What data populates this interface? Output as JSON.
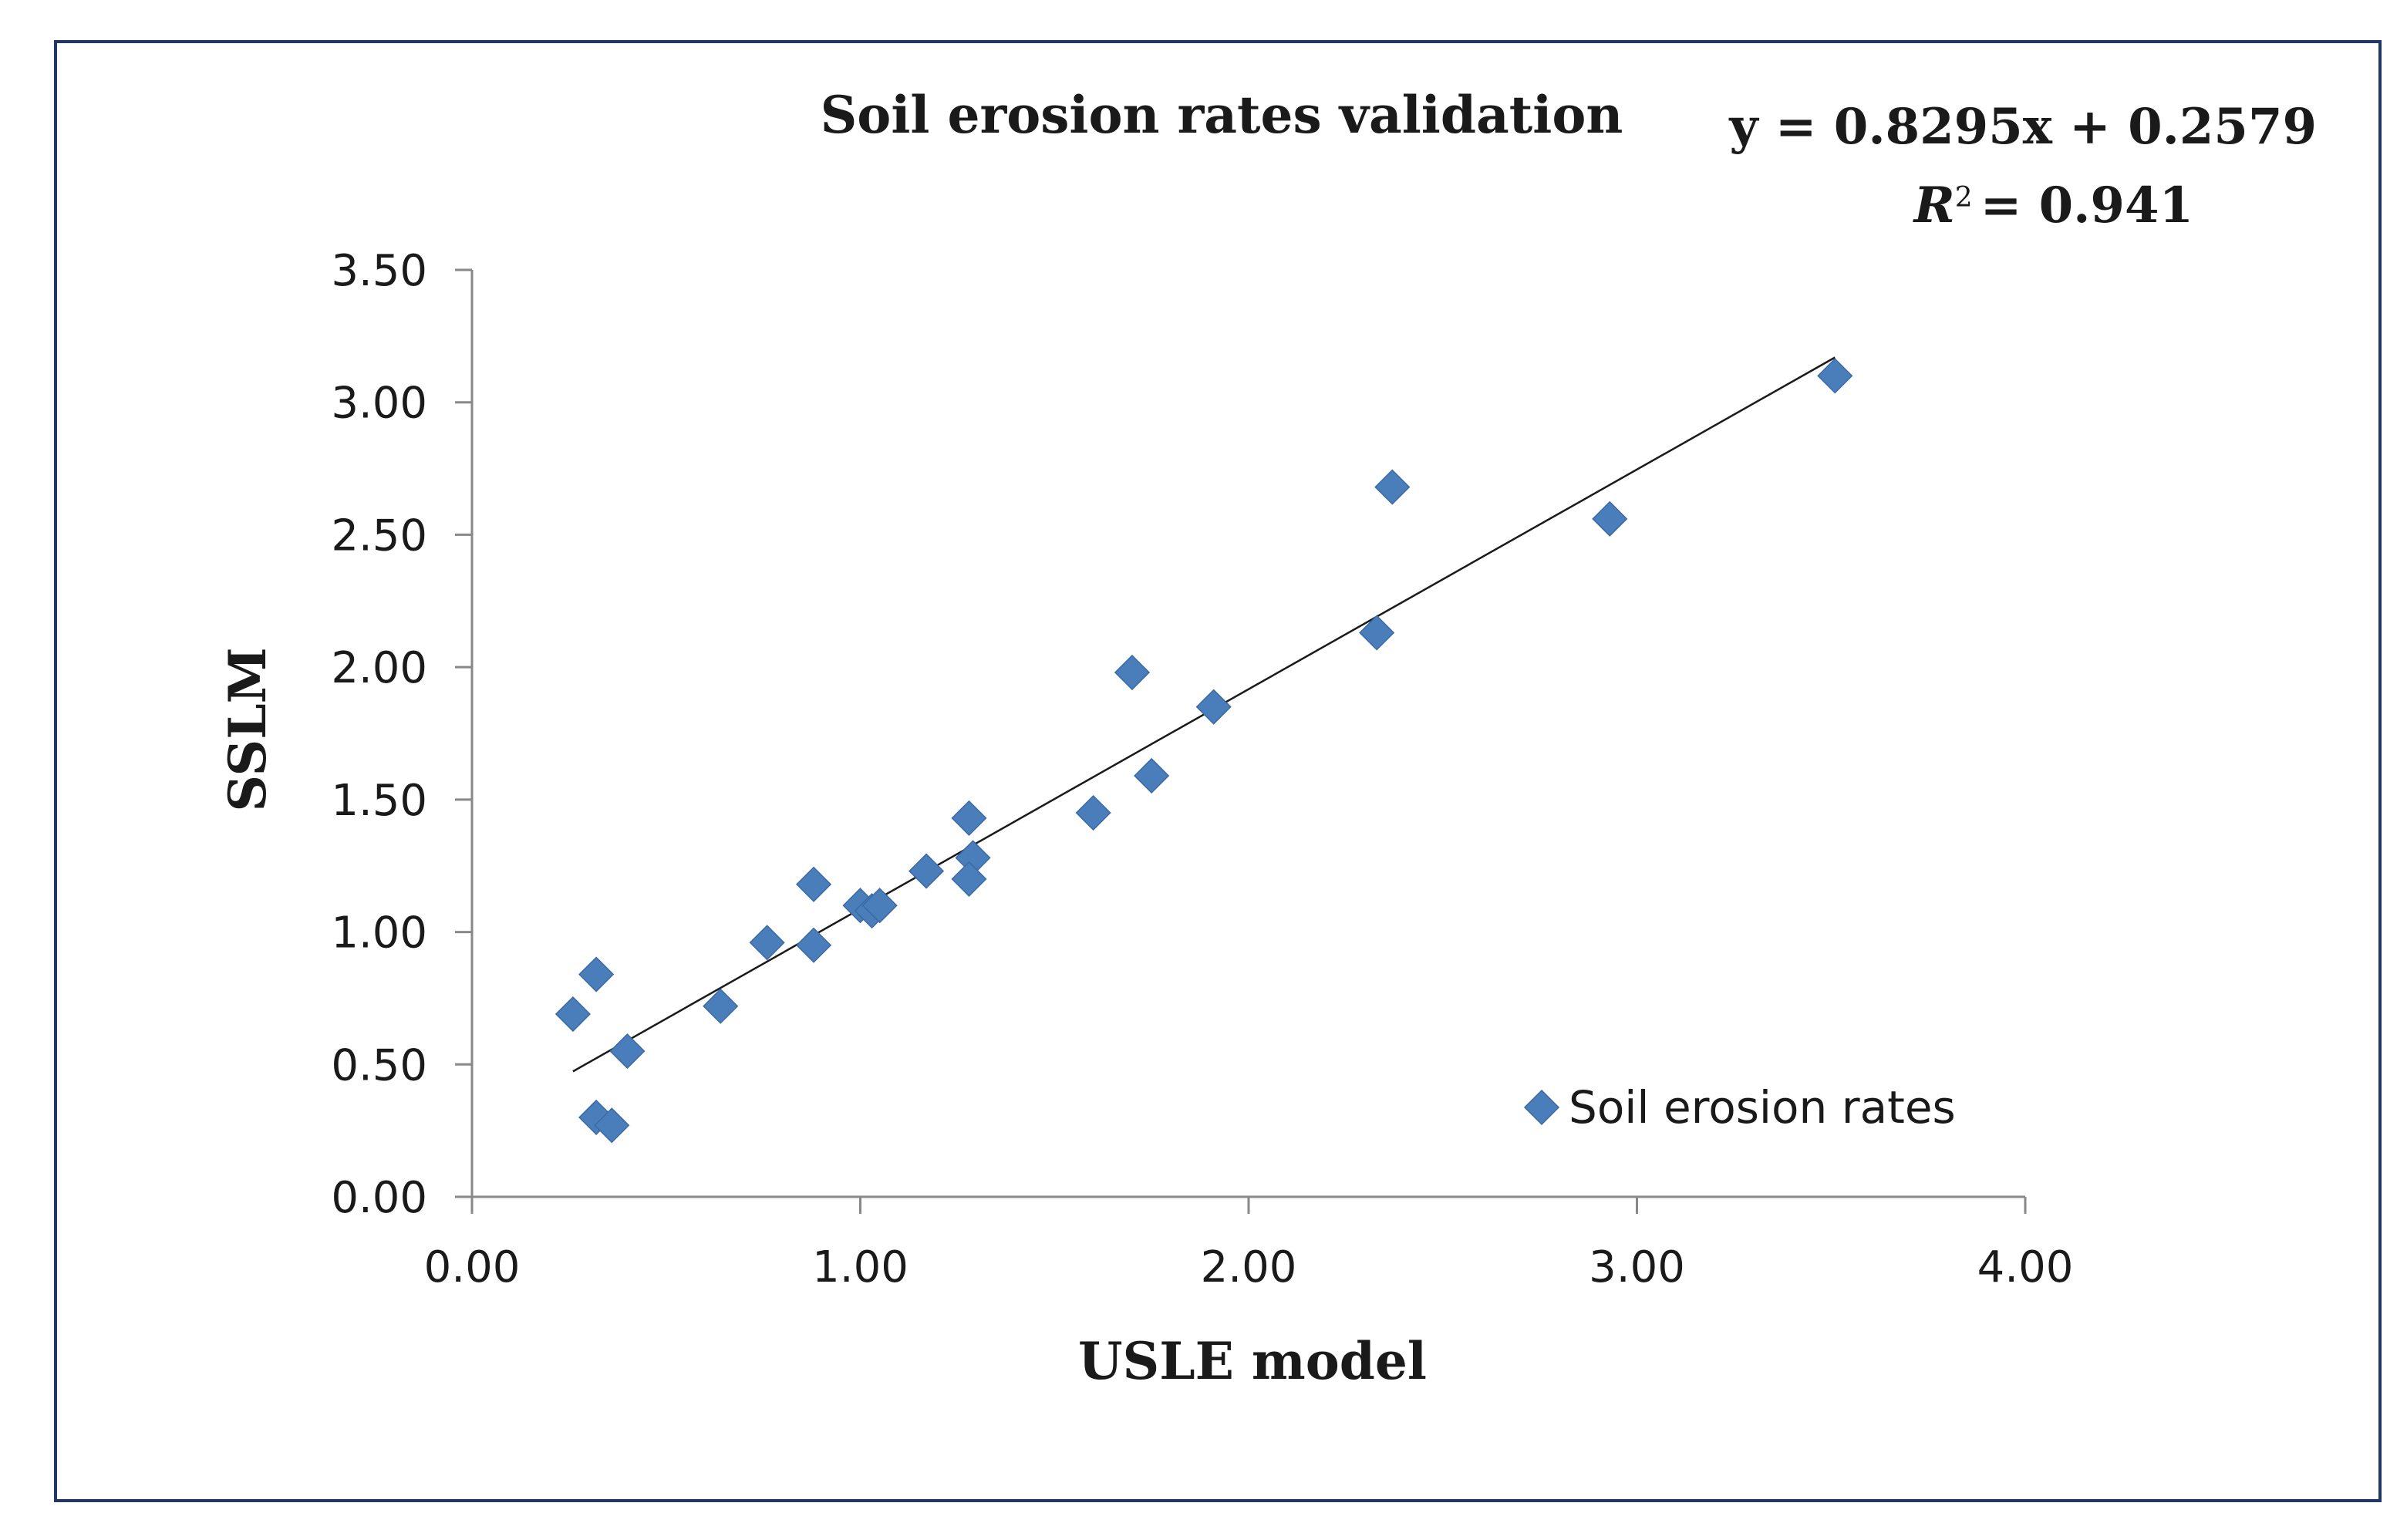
{
  "chart_data": {
    "type": "scatter",
    "title": "Soil erosion rates validation",
    "xlabel": "USLE model",
    "ylabel": "SSLM",
    "xlim": [
      0,
      4
    ],
    "ylim": [
      0,
      3.5
    ],
    "x_ticks": [
      "0.00",
      "1.00",
      "2.00",
      "3.00",
      "4.00"
    ],
    "y_ticks": [
      "0.00",
      "0.50",
      "1.00",
      "1.50",
      "2.00",
      "2.50",
      "3.00",
      "3.50"
    ],
    "x_tick_values": [
      0,
      1,
      2,
      3,
      4
    ],
    "y_tick_values": [
      0,
      0.5,
      1.0,
      1.5,
      2.0,
      2.5,
      3.0,
      3.5
    ],
    "grid": false,
    "legend": {
      "position": "bottom-right",
      "label": "Soil erosion rates"
    },
    "series": [
      {
        "name": "Soil erosion rates",
        "color": "#4a7ebb",
        "marker": "diamond",
        "points": [
          {
            "x": 0.26,
            "y": 0.69
          },
          {
            "x": 0.32,
            "y": 0.84
          },
          {
            "x": 0.32,
            "y": 0.3
          },
          {
            "x": 0.36,
            "y": 0.27
          },
          {
            "x": 0.4,
            "y": 0.55
          },
          {
            "x": 0.64,
            "y": 0.72
          },
          {
            "x": 0.76,
            "y": 0.96
          },
          {
            "x": 0.88,
            "y": 1.18
          },
          {
            "x": 0.88,
            "y": 0.95
          },
          {
            "x": 1.0,
            "y": 1.1
          },
          {
            "x": 1.03,
            "y": 1.08
          },
          {
            "x": 1.05,
            "y": 1.1
          },
          {
            "x": 1.17,
            "y": 1.23
          },
          {
            "x": 1.28,
            "y": 1.43
          },
          {
            "x": 1.29,
            "y": 1.28
          },
          {
            "x": 1.28,
            "y": 1.2
          },
          {
            "x": 1.6,
            "y": 1.45
          },
          {
            "x": 1.7,
            "y": 1.98
          },
          {
            "x": 1.75,
            "y": 1.59
          },
          {
            "x": 1.91,
            "y": 1.85
          },
          {
            "x": 2.33,
            "y": 2.13
          },
          {
            "x": 2.37,
            "y": 2.68
          },
          {
            "x": 2.93,
            "y": 2.56
          },
          {
            "x": 3.51,
            "y": 3.1
          }
        ]
      }
    ],
    "trendline": {
      "slope": 0.8295,
      "intercept": 0.2579,
      "x_start": 0.26,
      "x_end": 3.51,
      "equation": "y = 0.8295x + 0.2579",
      "r2_symbol": "R",
      "r2_superscript": "2",
      "r2_value": "= 0.941"
    }
  }
}
